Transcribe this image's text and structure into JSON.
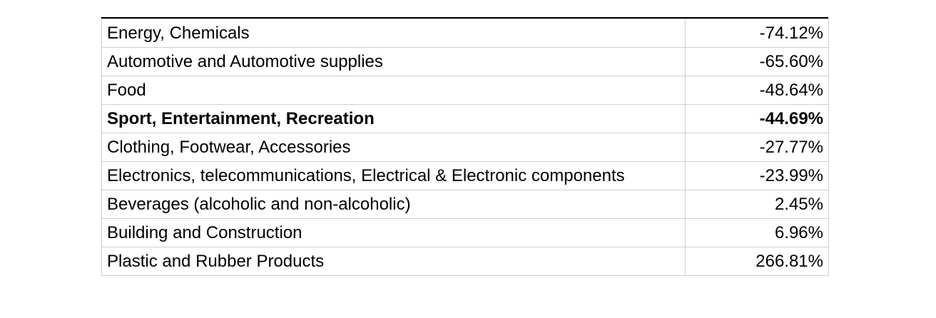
{
  "table": {
    "rows": [
      {
        "sector": "Energy, Chemicals",
        "change": "-74.12%",
        "bold": false
      },
      {
        "sector": "Automotive and Automotive supplies",
        "change": "-65.60%",
        "bold": false
      },
      {
        "sector": "Food",
        "change": "-48.64%",
        "bold": false
      },
      {
        "sector": "Sport, Entertainment, Recreation",
        "change": "-44.69%",
        "bold": true
      },
      {
        "sector": "Clothing, Footwear, Accessories",
        "change": "-27.77%",
        "bold": false
      },
      {
        "sector": "Electronics, telecommunications, Electrical & Electronic components",
        "change": "-23.99%",
        "bold": false
      },
      {
        "sector": "Beverages (alcoholic and non-alcoholic)",
        "change": "2.45%",
        "bold": false
      },
      {
        "sector": "Building and Construction",
        "change": "6.96%",
        "bold": false
      },
      {
        "sector": "Plastic and Rubber Products",
        "change": "266.81%",
        "bold": false
      }
    ]
  }
}
